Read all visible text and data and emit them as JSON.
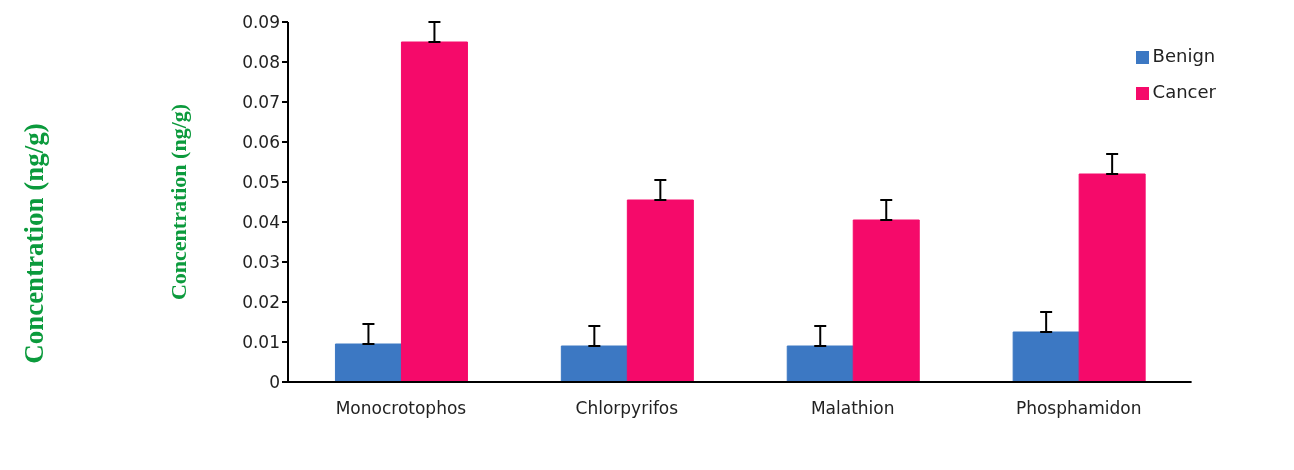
{
  "chart_data": {
    "type": "bar",
    "ylabel": "Concentration (ng/g)",
    "annotations": [
      "Concentration (ng/g)"
    ],
    "categories": [
      "Monocrotophos",
      "Chlorpyrifos",
      "Malathion",
      "Phosphamidon"
    ],
    "series": [
      {
        "name": "Benign",
        "color": "#3c78c3",
        "values": [
          0.0095,
          0.009,
          0.009,
          0.0125
        ],
        "errors": [
          [
            0.0095,
            0.0145
          ],
          [
            0.009,
            0.014
          ],
          [
            0.009,
            0.014
          ],
          [
            0.0125,
            0.0175
          ]
        ]
      },
      {
        "name": "Cancer",
        "color": "#f50a6a",
        "values": [
          0.085,
          0.0455,
          0.0405,
          0.052
        ],
        "errors": [
          [
            0.085,
            0.09
          ],
          [
            0.0455,
            0.0505
          ],
          [
            0.0405,
            0.0455
          ],
          [
            0.052,
            0.057
          ]
        ]
      }
    ],
    "ylim": [
      0,
      0.09
    ],
    "yticks": [
      0,
      0.01,
      0.02,
      0.03,
      0.04,
      0.05,
      0.06,
      0.07,
      0.08,
      0.09
    ],
    "grid": false,
    "legend": "top right"
  }
}
